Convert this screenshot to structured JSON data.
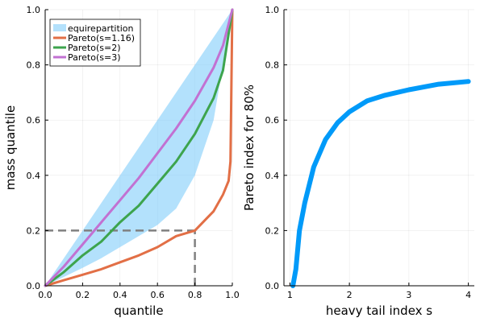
{
  "chart_data": [
    {
      "type": "line",
      "xlabel": "quantile",
      "ylabel": "mass quantile",
      "xlim": [
        0,
        1
      ],
      "ylim": [
        0,
        1
      ],
      "xticks": [
        0.0,
        0.2,
        0.4,
        0.6,
        0.8,
        1.0
      ],
      "yticks": [
        0.0,
        0.2,
        0.4,
        0.6,
        0.8,
        1.0
      ],
      "xtick_labels": [
        "0.0",
        "0.2",
        "0.4",
        "0.6",
        "0.8",
        "1.0"
      ],
      "ytick_labels": [
        "0.0",
        "0.2",
        "0.4",
        "0.6",
        "0.8",
        "1.0"
      ],
      "grid": true,
      "legend_position": "top-left",
      "area": {
        "name": "equirepartition",
        "color": "#80cdfa",
        "upper": [
          [
            0,
            0
          ],
          [
            1,
            1
          ]
        ],
        "lower": [
          [
            0,
            0
          ],
          [
            0.1,
            0.032
          ],
          [
            0.2,
            0.065
          ],
          [
            0.3,
            0.1
          ],
          [
            0.4,
            0.14
          ],
          [
            0.5,
            0.18
          ],
          [
            0.6,
            0.22
          ],
          [
            0.7,
            0.28
          ],
          [
            0.8,
            0.4
          ],
          [
            0.9,
            0.6
          ],
          [
            0.95,
            0.8
          ],
          [
            1,
            1
          ]
        ]
      },
      "series": [
        {
          "name": "Pareto(s=1.16)",
          "color": "#e26f46",
          "points": [
            [
              0,
              0
            ],
            [
              0.1,
              0.02
            ],
            [
              0.2,
              0.04
            ],
            [
              0.3,
              0.06
            ],
            [
              0.4,
              0.085
            ],
            [
              0.5,
              0.11
            ],
            [
              0.6,
              0.14
            ],
            [
              0.7,
              0.18
            ],
            [
              0.8,
              0.2
            ],
            [
              0.9,
              0.27
            ],
            [
              0.95,
              0.33
            ],
            [
              0.98,
              0.38
            ],
            [
              0.99,
              0.45
            ],
            [
              1,
              1
            ]
          ]
        },
        {
          "name": "Pareto(s=2)",
          "color": "#3da44d",
          "points": [
            [
              0,
              0
            ],
            [
              0.1,
              0.05
            ],
            [
              0.2,
              0.11
            ],
            [
              0.3,
              0.16
            ],
            [
              0.4,
              0.23
            ],
            [
              0.5,
              0.29
            ],
            [
              0.6,
              0.37
            ],
            [
              0.7,
              0.45
            ],
            [
              0.8,
              0.55
            ],
            [
              0.9,
              0.68
            ],
            [
              0.95,
              0.78
            ],
            [
              1,
              1
            ]
          ]
        },
        {
          "name": "Pareto(s=3)",
          "color": "#c271d2",
          "points": [
            [
              0,
              0
            ],
            [
              0.1,
              0.07
            ],
            [
              0.2,
              0.15
            ],
            [
              0.3,
              0.23
            ],
            [
              0.4,
              0.31
            ],
            [
              0.5,
              0.39
            ],
            [
              0.6,
              0.48
            ],
            [
              0.7,
              0.57
            ],
            [
              0.8,
              0.67
            ],
            [
              0.9,
              0.79
            ],
            [
              0.95,
              0.87
            ],
            [
              1,
              1
            ]
          ]
        }
      ],
      "reference_lines": [
        {
          "type": "horizontal",
          "y": 0.2,
          "x_range": [
            0,
            0.8
          ],
          "color": "#808080",
          "style": "dashed"
        },
        {
          "type": "vertical",
          "x": 0.8,
          "y_range": [
            0,
            0.2
          ],
          "color": "#808080",
          "style": "dashed"
        }
      ]
    },
    {
      "type": "line",
      "xlabel": "heavy tail index s",
      "ylabel": "Pareto index for 80%",
      "xlim": [
        0.9,
        4.1
      ],
      "ylim": [
        0,
        1
      ],
      "xticks": [
        1,
        2,
        3,
        4
      ],
      "yticks": [
        0.0,
        0.2,
        0.4,
        0.6,
        0.8,
        1.0
      ],
      "xtick_labels": [
        "1",
        "2",
        "3",
        "4"
      ],
      "ytick_labels": [
        "0.0",
        "0.2",
        "0.4",
        "0.6",
        "0.8",
        "1.0"
      ],
      "grid": true,
      "series": [
        {
          "color": "#009af9",
          "points": [
            [
              1.05,
              0.0
            ],
            [
              1.1,
              0.06
            ],
            [
              1.16,
              0.2
            ],
            [
              1.25,
              0.3
            ],
            [
              1.4,
              0.43
            ],
            [
              1.6,
              0.53
            ],
            [
              1.8,
              0.59
            ],
            [
              2.0,
              0.63
            ],
            [
              2.3,
              0.67
            ],
            [
              2.6,
              0.69
            ],
            [
              3.0,
              0.71
            ],
            [
              3.5,
              0.73
            ],
            [
              4.0,
              0.74
            ]
          ]
        }
      ]
    }
  ]
}
